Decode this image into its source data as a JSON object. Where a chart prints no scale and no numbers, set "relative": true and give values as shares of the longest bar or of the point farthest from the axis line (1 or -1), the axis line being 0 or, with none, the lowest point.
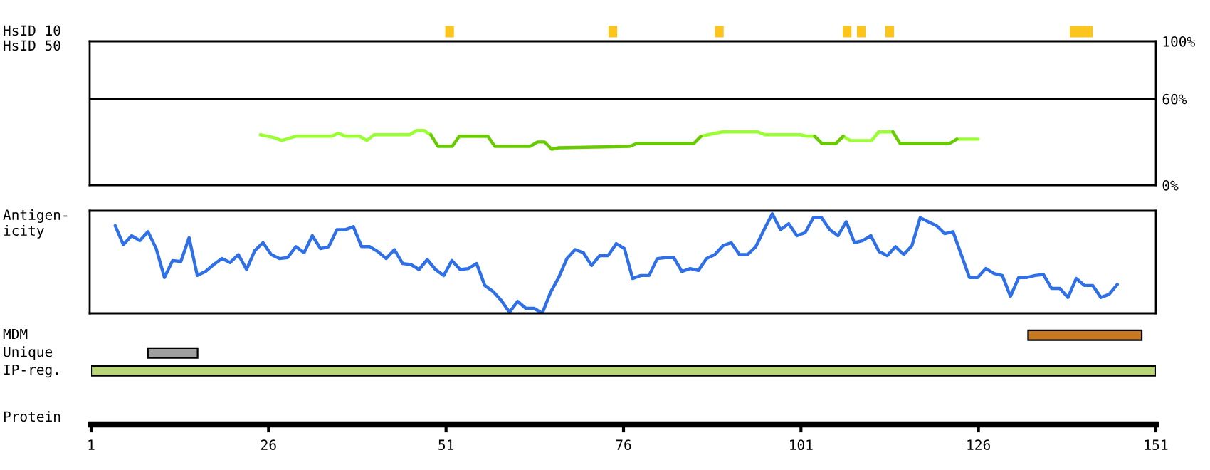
{
  "chart_data": [
    {
      "type": "line",
      "ylabel": "HsID 50",
      "xlim": [
        1,
        151
      ],
      "ylim": [
        0,
        100
      ],
      "yticks": [
        {
          "value": 0,
          "label": "0%"
        },
        {
          "value": 60,
          "label": "60%"
        },
        {
          "value": 100,
          "label": "100%"
        }
      ],
      "tick_labels": "y",
      "ref_lines": [
        {
          "axis": "y",
          "value": 60,
          "color": "#000000"
        }
      ],
      "x": [
        25,
        27,
        28,
        30,
        35,
        36,
        37,
        39,
        40,
        41,
        46,
        47,
        48,
        49,
        50,
        52,
        53,
        57,
        58,
        63,
        64,
        65,
        66,
        67,
        77,
        78,
        86,
        87,
        88,
        90,
        95,
        96,
        101,
        102,
        103,
        104,
        106,
        107,
        108,
        111,
        112,
        114,
        115,
        122,
        123,
        126
      ],
      "series": [
        {
          "color": "#99ff33",
          "values": [
            35,
            33,
            31,
            34,
            34,
            36,
            34,
            34,
            31,
            35,
            35,
            38,
            38,
            35,
            null,
            null,
            34,
            34,
            null,
            null,
            null,
            null,
            null,
            null,
            null,
            null,
            null,
            34,
            35,
            37,
            37,
            35,
            35,
            34,
            34,
            null,
            null,
            34,
            31,
            31,
            37,
            37,
            null,
            null,
            32,
            32
          ]
        },
        {
          "color": "#66cc00",
          "values": [
            null,
            null,
            null,
            null,
            null,
            null,
            null,
            null,
            null,
            null,
            null,
            null,
            null,
            35,
            27,
            27,
            34,
            34,
            27,
            27,
            30,
            30,
            25,
            26,
            27,
            29,
            29,
            34,
            null,
            null,
            null,
            null,
            null,
            null,
            34,
            29,
            29,
            34,
            null,
            null,
            null,
            37,
            29,
            29,
            32,
            null
          ]
        }
      ]
    },
    {
      "type": "line",
      "ylabel": "Antigen-\nicity",
      "relative": true,
      "tick_labels": false,
      "categories": [
        null,
        null,
        null,
        null,
        null,
        null,
        null,
        null,
        null,
        null,
        null,
        null,
        null,
        null,
        null,
        null,
        null,
        null,
        null,
        null,
        null,
        null,
        null,
        null,
        null,
        null,
        null,
        null,
        null,
        null,
        null,
        null,
        null,
        null,
        null,
        null,
        null,
        null,
        null,
        null,
        null,
        null,
        null,
        null,
        null,
        null,
        null,
        null,
        null,
        null,
        null,
        null,
        null,
        null,
        null,
        null,
        null,
        null,
        null,
        null,
        null,
        null,
        null,
        null,
        null,
        null,
        null,
        null,
        null,
        null,
        null,
        null,
        null,
        null,
        null,
        null,
        null,
        null,
        null,
        null,
        null,
        null,
        null,
        null,
        null,
        null,
        null,
        null,
        null,
        null,
        null,
        null,
        null,
        null,
        null,
        null,
        null,
        null,
        null,
        null,
        null,
        null,
        null,
        null,
        null,
        null,
        null,
        null,
        null,
        null,
        null,
        null,
        null,
        null,
        null,
        null,
        null,
        null,
        null,
        null,
        null,
        null,
        null
      ],
      "series": [
        {
          "color": "#2f6fe8",
          "values": [
            0.88,
            0.69,
            0.78,
            0.73,
            0.82,
            0.65,
            0.36,
            0.53,
            0.52,
            0.76,
            0.38,
            0.42,
            0.49,
            0.55,
            0.51,
            0.59,
            0.44,
            0.63,
            0.71,
            0.59,
            0.55,
            0.56,
            0.67,
            0.61,
            0.78,
            0.65,
            0.67,
            0.84,
            0.84,
            0.87,
            0.67,
            0.67,
            0.62,
            0.55,
            0.64,
            0.5,
            0.49,
            0.44,
            0.54,
            0.44,
            0.38,
            0.53,
            0.44,
            0.45,
            0.5,
            0.28,
            0.22,
            0.13,
            0.01,
            0.12,
            0.05,
            0.05,
            0,
            0.21,
            0.36,
            0.55,
            0.64,
            0.61,
            0.48,
            0.58,
            0.58,
            0.7,
            0.65,
            0.35,
            0.38,
            0.38,
            0.55,
            0.56,
            0.56,
            0.42,
            0.45,
            0.43,
            0.55,
            0.59,
            0.68,
            0.71,
            0.59,
            0.59,
            0.67,
            0.84,
            1,
            0.84,
            0.9,
            0.78,
            0.81,
            0.96,
            0.96,
            0.84,
            0.78,
            0.92,
            0.71,
            0.73,
            0.78,
            0.62,
            0.58,
            0.67,
            0.59,
            0.68,
            0.96,
            0.92,
            0.88,
            0.8,
            0.82,
            0.59,
            0.36,
            0.36,
            0.45,
            0.4,
            0.38,
            0.17,
            0.36,
            0.36,
            0.38,
            0.39,
            0.25,
            0.25,
            0.16,
            0.35,
            0.28,
            0.28,
            0.16,
            0.19,
            0.29
          ]
        }
      ]
    },
    {
      "type": "bar",
      "orientation": "horizontal",
      "categories": [
        "HsID 10",
        null,
        null,
        null,
        null,
        null,
        null,
        null,
        null,
        null,
        null,
        null,
        null,
        null,
        null,
        null,
        null,
        "MDM",
        "Unique",
        "IP-reg."
      ],
      "xlim": [
        1,
        151
      ],
      "xticks": [
        1,
        26,
        51,
        76,
        101,
        126,
        151
      ],
      "xlabel": "Protein",
      "tick_labels": "x",
      "series": [
        {
          "color": "#fcc51c",
          "values": [
            1,
            null,
            null,
            null,
            null,
            null,
            null,
            null,
            null,
            null,
            null,
            null,
            null,
            null,
            null,
            null,
            null,
            null,
            null,
            null
          ],
          "base": [
            51,
            null,
            null,
            null,
            null,
            null,
            null,
            null,
            null,
            null,
            null,
            null,
            null,
            null,
            null,
            null,
            null,
            null,
            null,
            null
          ]
        },
        {
          "color": "#fcc51c",
          "values": [
            1,
            null,
            null,
            null,
            null,
            null,
            null,
            null,
            null,
            null,
            null,
            null,
            null,
            null,
            null,
            null,
            null,
            null,
            null,
            null
          ],
          "base": [
            74,
            null,
            null,
            null,
            null,
            null,
            null,
            null,
            null,
            null,
            null,
            null,
            null,
            null,
            null,
            null,
            null,
            null,
            null,
            null
          ]
        },
        {
          "color": "#fcc51c",
          "values": [
            1,
            null,
            null,
            null,
            null,
            null,
            null,
            null,
            null,
            null,
            null,
            null,
            null,
            null,
            null,
            null,
            null,
            null,
            null,
            null
          ],
          "base": [
            89,
            null,
            null,
            null,
            null,
            null,
            null,
            null,
            null,
            null,
            null,
            null,
            null,
            null,
            null,
            null,
            null,
            null,
            null,
            null
          ]
        },
        {
          "color": "#fcc51c",
          "values": [
            1,
            null,
            null,
            null,
            null,
            null,
            null,
            null,
            null,
            null,
            null,
            null,
            null,
            null,
            null,
            null,
            null,
            null,
            null,
            null
          ],
          "base": [
            107,
            null,
            null,
            null,
            null,
            null,
            null,
            null,
            null,
            null,
            null,
            null,
            null,
            null,
            null,
            null,
            null,
            null,
            null,
            null
          ]
        },
        {
          "color": "#fcc51c",
          "values": [
            1,
            null,
            null,
            null,
            null,
            null,
            null,
            null,
            null,
            null,
            null,
            null,
            null,
            null,
            null,
            null,
            null,
            null,
            null,
            null
          ],
          "base": [
            109,
            null,
            null,
            null,
            null,
            null,
            null,
            null,
            null,
            null,
            null,
            null,
            null,
            null,
            null,
            null,
            null,
            null,
            null,
            null
          ]
        },
        {
          "color": "#fcc51c",
          "values": [
            1,
            null,
            null,
            null,
            null,
            null,
            null,
            null,
            null,
            null,
            null,
            null,
            null,
            null,
            null,
            null,
            null,
            null,
            null,
            null
          ],
          "base": [
            113,
            null,
            null,
            null,
            null,
            null,
            null,
            null,
            null,
            null,
            null,
            null,
            null,
            null,
            null,
            null,
            null,
            null,
            null,
            null
          ]
        },
        {
          "color": "#fcc51c",
          "values": [
            3,
            null,
            null,
            null,
            null,
            null,
            null,
            null,
            null,
            null,
            null,
            null,
            null,
            null,
            null,
            null,
            null,
            null,
            null,
            null
          ],
          "base": [
            139,
            null,
            null,
            null,
            null,
            null,
            null,
            null,
            null,
            null,
            null,
            null,
            null,
            null,
            null,
            null,
            null,
            null,
            null,
            null
          ]
        },
        {
          "colors": [
            null,
            null,
            null,
            null,
            null,
            null,
            null,
            null,
            null,
            null,
            null,
            null,
            null,
            null,
            null,
            null,
            null,
            "#c8781e",
            "#a0a0a0",
            "#b8d678"
          ],
          "values": [
            null,
            null,
            null,
            null,
            null,
            null,
            null,
            null,
            null,
            null,
            null,
            null,
            null,
            null,
            null,
            null,
            null,
            16,
            7,
            150
          ],
          "base": [
            null,
            null,
            null,
            null,
            null,
            null,
            null,
            null,
            null,
            null,
            null,
            null,
            null,
            null,
            null,
            null,
            null,
            133,
            9,
            1
          ]
        }
      ]
    }
  ]
}
